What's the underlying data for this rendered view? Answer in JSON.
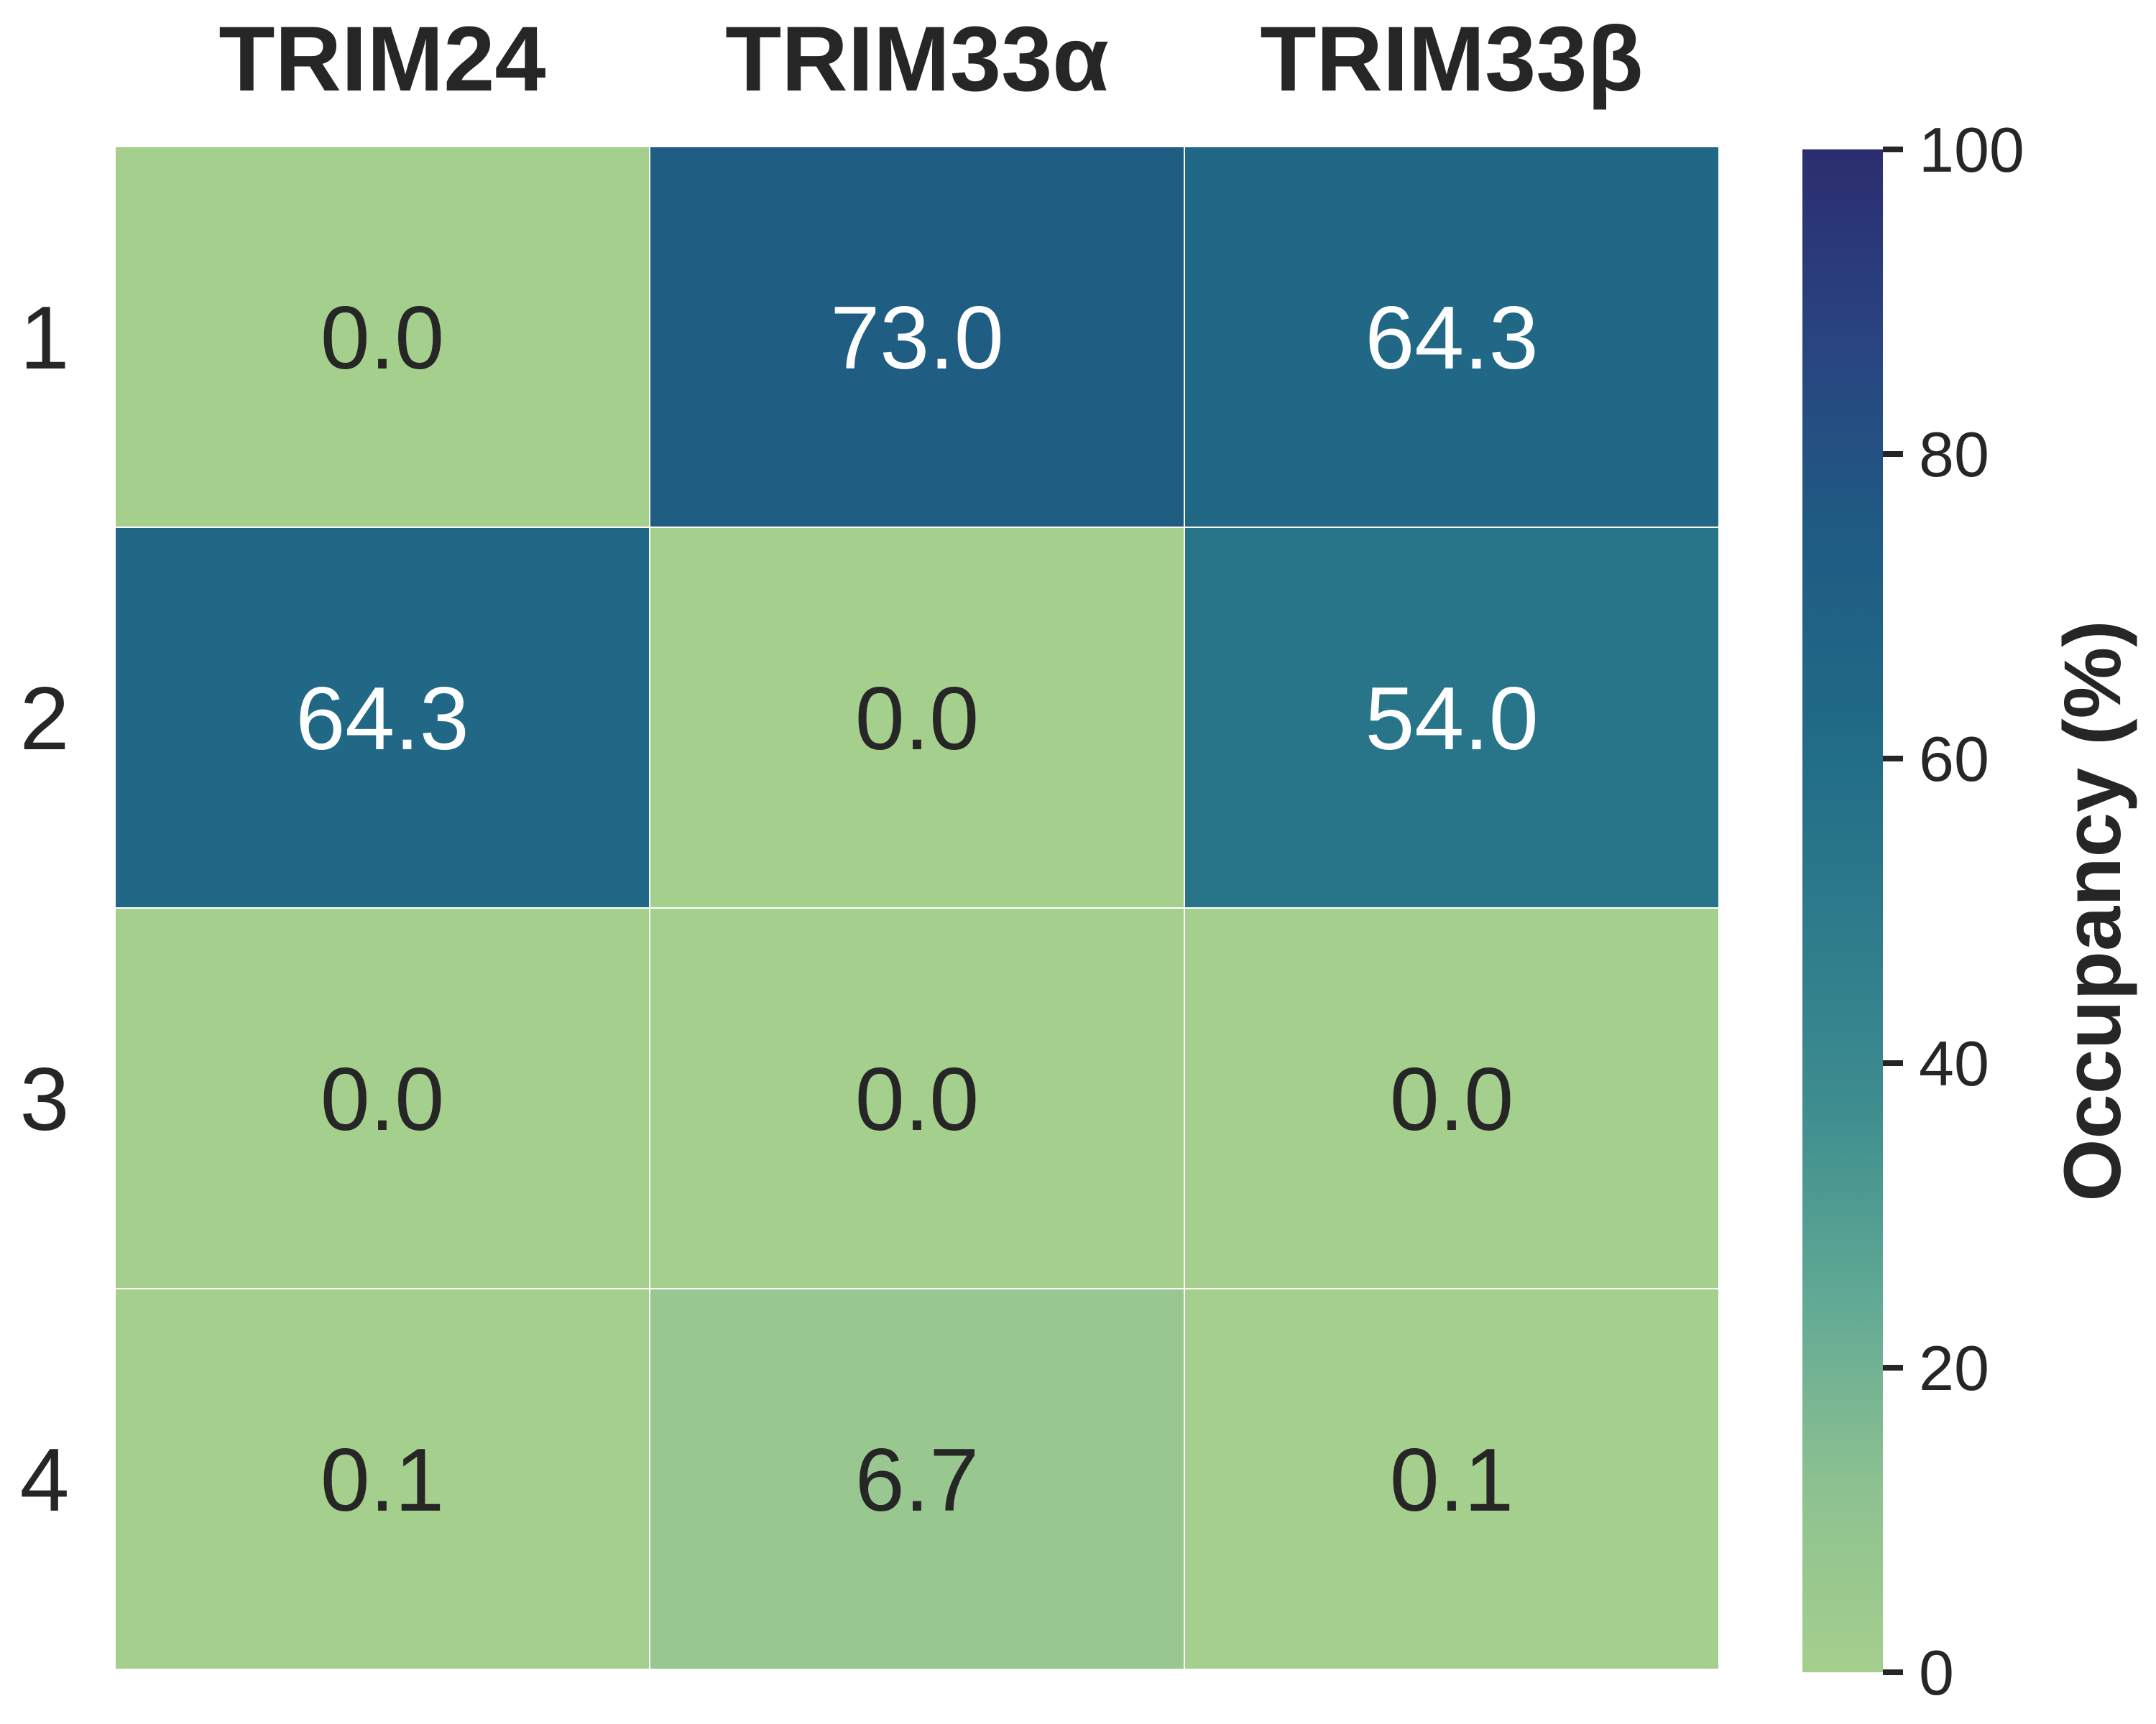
{
  "chart_data": {
    "type": "heatmap",
    "columns": [
      "TRIM24",
      "TRIM33α",
      "TRIM33β"
    ],
    "rows": [
      "1",
      "2",
      "3",
      "4"
    ],
    "values": [
      [
        0.0,
        73.0,
        64.3
      ],
      [
        64.3,
        0.0,
        54.0
      ],
      [
        0.0,
        0.0,
        0.0
      ],
      [
        0.1,
        6.7,
        0.1
      ]
    ],
    "value_labels": [
      [
        "0.0",
        "73.0",
        "64.3"
      ],
      [
        "64.3",
        "0.0",
        "54.0"
      ],
      [
        "0.0",
        "0.0",
        "0.0"
      ],
      [
        "0.1",
        "6.7",
        "0.1"
      ]
    ],
    "colorbar": {
      "label": "Occupancy (%)",
      "range": [
        0,
        100
      ],
      "ticks": [
        0,
        20,
        40,
        60,
        80,
        100
      ],
      "tick_labels": [
        "0",
        "20",
        "40",
        "60",
        "80",
        "100"
      ]
    },
    "colormap": [
      "#a5cf8d",
      "#8cc190",
      "#5fa894",
      "#3d8c8f",
      "#2c7a8b",
      "#206a86",
      "#1f5b83",
      "#294480",
      "#2c2d6f"
    ],
    "cell_text_colors": {
      "dark": "#262626",
      "light": "#ffffff"
    }
  }
}
